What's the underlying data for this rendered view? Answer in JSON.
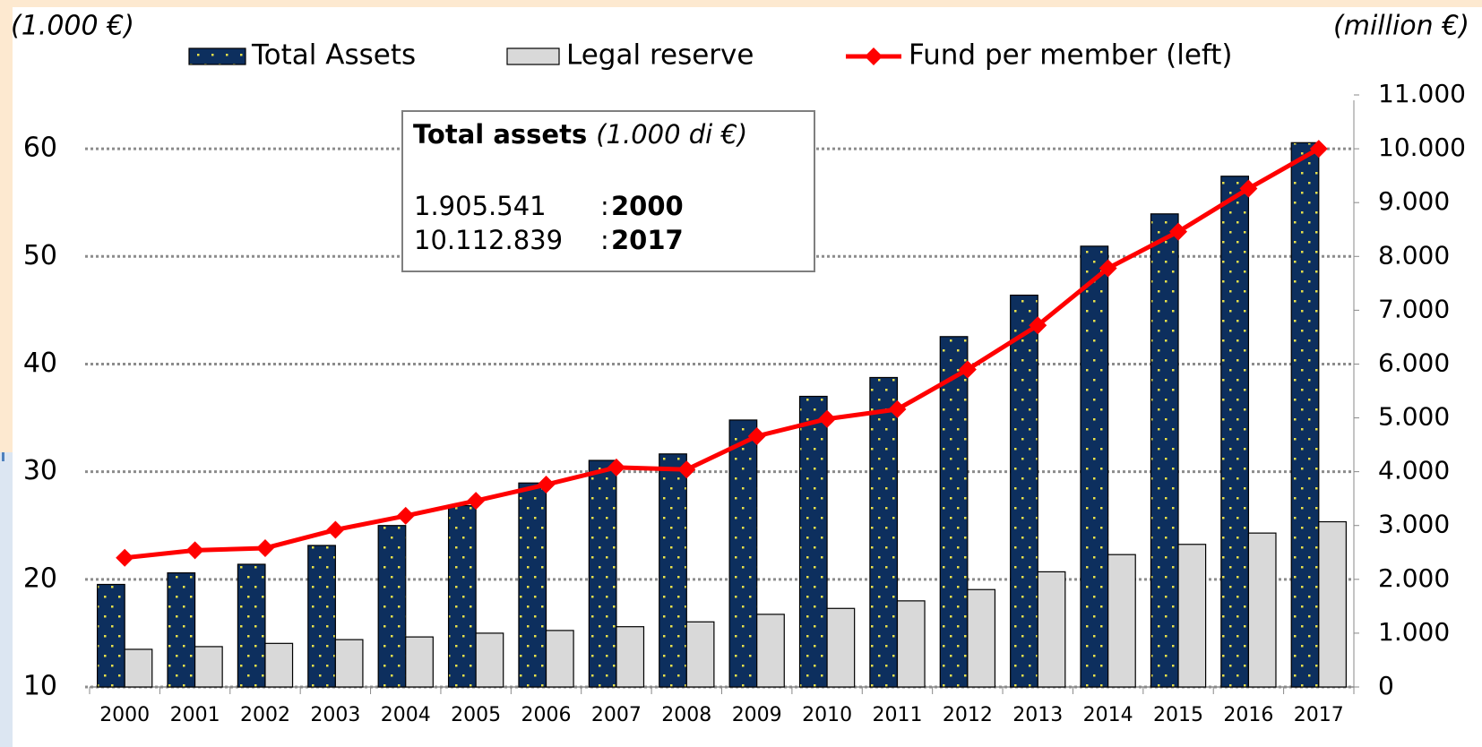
{
  "chart_data": {
    "type": "bar_line",
    "y_label": "(1.000 €)",
    "y2_label": "(million €)",
    "categories": [
      "2000",
      "2001",
      "2002",
      "2003",
      "2004",
      "2005",
      "2006",
      "2007",
      "2008",
      "2009",
      "2010",
      "2011",
      "2012",
      "2013",
      "2014",
      "2015",
      "2016",
      "2017"
    ],
    "series": [
      {
        "name": "Total Assets",
        "type": "bar",
        "axis": "y2",
        "color": "#0d2f5e",
        "dot_color": "#e8e04a",
        "values": [
          1905.541,
          2120,
          2280,
          2630,
          3000,
          3370,
          3790,
          4210,
          4330,
          4960,
          5400,
          5750,
          6510,
          7280,
          8190,
          8790,
          9490,
          10112.839
        ]
      },
      {
        "name": "Legal reserve",
        "type": "bar",
        "axis": "y2",
        "color": "#d9d9d9",
        "values": [
          700,
          750,
          810,
          880,
          930,
          1000,
          1050,
          1120,
          1210,
          1350,
          1460,
          1600,
          1810,
          2140,
          2460,
          2650,
          2860,
          3070
        ]
      },
      {
        "name": "Fund per member (left)",
        "type": "line",
        "axis": "y",
        "color": "#ff0000",
        "values": [
          22.0,
          22.7,
          22.9,
          24.6,
          25.9,
          27.3,
          28.8,
          30.4,
          30.2,
          33.3,
          34.9,
          35.8,
          39.5,
          43.6,
          48.9,
          52.3,
          56.3,
          60.0
        ]
      }
    ],
    "ylim": [
      10,
      65
    ],
    "yticks": [
      10,
      20,
      30,
      40,
      50,
      60
    ],
    "y2lim": [
      0,
      11000
    ],
    "y2ticks": [
      {
        "value": 0,
        "label": "0"
      },
      {
        "value": 1000,
        "label": "1.000"
      },
      {
        "value": 2000,
        "label": "2.000"
      },
      {
        "value": 3000,
        "label": "3.000"
      },
      {
        "value": 4000,
        "label": "4.000"
      },
      {
        "value": 5000,
        "label": "5.000"
      },
      {
        "value": 6000,
        "label": "6.000"
      },
      {
        "value": 7000,
        "label": "7.000"
      },
      {
        "value": 8000,
        "label": "8.000"
      },
      {
        "value": 9000,
        "label": "9.000"
      },
      {
        "value": 10000,
        "label": "10.000"
      },
      {
        "value": 11000,
        "label": "11.000"
      }
    ],
    "grid": true,
    "annotation": {
      "title": "Total assets",
      "unit": "(1.000 di €)",
      "lines": [
        {
          "amount": "1.905.541",
          "separator": ":",
          "year": "2000"
        },
        {
          "amount": "10.112.839",
          "separator": ":",
          "year": "2017"
        }
      ]
    }
  }
}
